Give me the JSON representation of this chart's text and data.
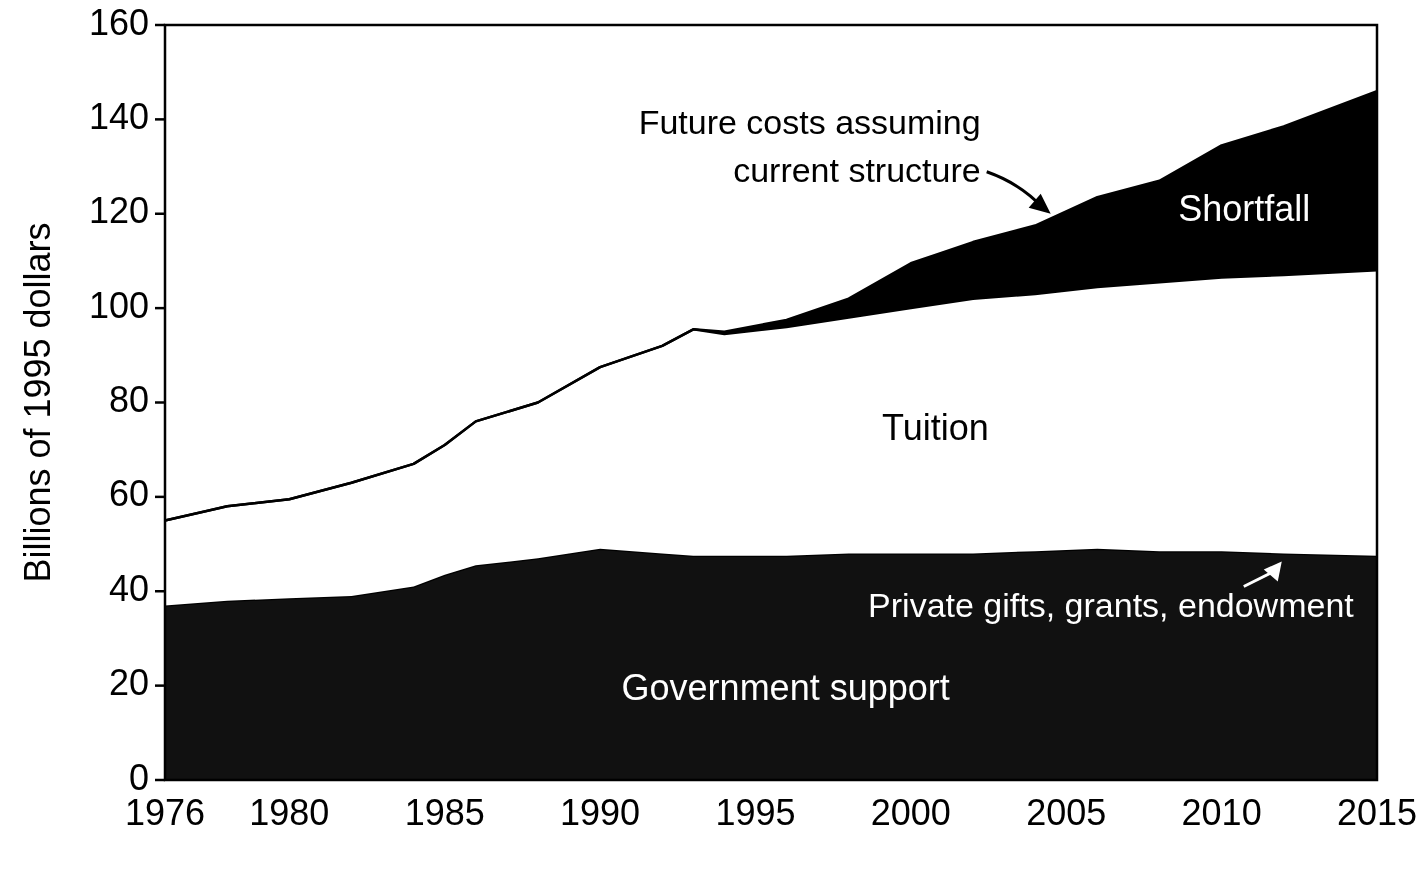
{
  "chart_data": {
    "type": "area",
    "stacked": true,
    "ylabel": "Billions of 1995 dollars",
    "x": [
      1976,
      1978,
      1980,
      1982,
      1984,
      1985,
      1986,
      1988,
      1990,
      1992,
      1993,
      1994,
      1996,
      1998,
      2000,
      2002,
      2004,
      2006,
      2008,
      2010,
      2012,
      2015
    ],
    "series": [
      {
        "name": "Government support",
        "color": "#111111",
        "values": [
          37,
          38,
          38.5,
          39,
          41,
          43.5,
          45.5,
          47,
          49,
          48,
          47.5,
          47.5,
          47.5,
          48,
          48,
          48,
          48.5,
          49,
          48.5,
          48.5,
          48,
          47.5
        ]
      },
      {
        "name": "Tuition",
        "color": "#ffffff",
        "values": [
          18,
          20,
          21,
          24,
          26,
          27.5,
          30.5,
          33,
          38.5,
          44,
          48,
          47,
          48.5,
          50,
          52,
          54,
          54.5,
          55.5,
          57,
          58,
          59,
          60.5
        ]
      },
      {
        "name": "Shortfall",
        "color": "#000000",
        "values": [
          0,
          0,
          0,
          0,
          0,
          0,
          0,
          0,
          0,
          0,
          0,
          0.5,
          1.5,
          4,
          9.5,
          12,
          14.5,
          19,
          21.5,
          28,
          31.5,
          38
        ]
      }
    ],
    "annotations": [
      {
        "text": "Future costs assuming current structure",
        "x": 2004.5,
        "y": 120
      },
      {
        "text": "Private gifts, grants, endowment",
        "x": 2012,
        "y": 48
      }
    ],
    "xlim": [
      1976,
      2015
    ],
    "xticks": [
      1976,
      1980,
      1985,
      1990,
      1995,
      2000,
      2005,
      2010,
      2015
    ],
    "ylim": [
      0,
      160
    ],
    "yticks": [
      0,
      20,
      40,
      60,
      80,
      100,
      120,
      140,
      160
    ],
    "grid": false,
    "legend": false
  }
}
